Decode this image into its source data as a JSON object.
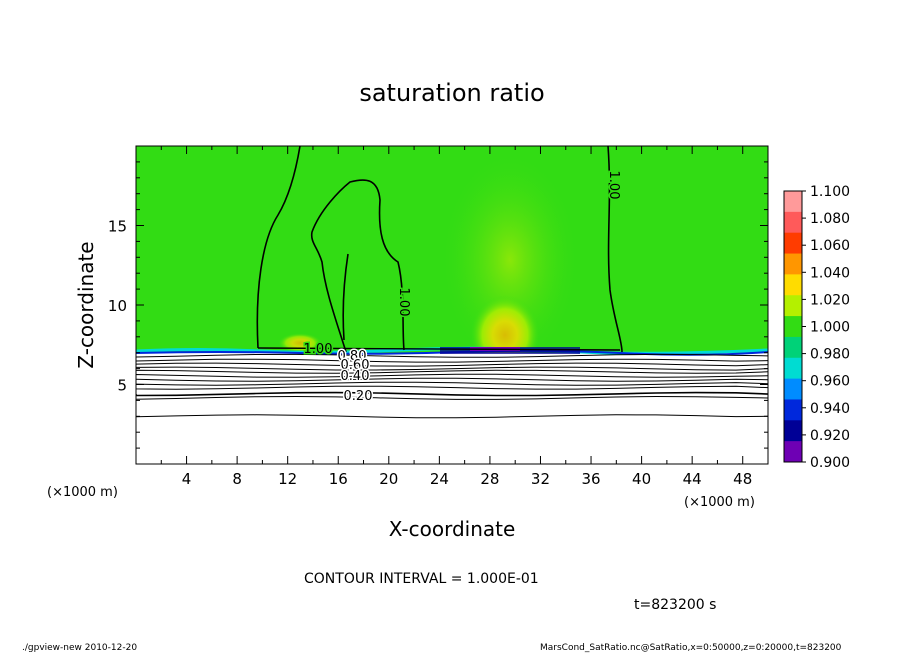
{
  "chart_data": {
    "type": "heatmap",
    "title": "saturation ratio",
    "xlabel": "X-coordinate",
    "ylabel": "Z-coordinate",
    "x_unit": "(×1000 m)",
    "y_unit": "(×1000 m)",
    "xlim": [
      0,
      50
    ],
    "ylim": [
      0,
      20
    ],
    "x_ticks": [
      4,
      8,
      12,
      16,
      20,
      24,
      28,
      32,
      36,
      40,
      44,
      48
    ],
    "y_ticks": [
      5,
      10,
      15
    ],
    "colorbar": {
      "levels": [
        "1.100",
        "1.080",
        "1.060",
        "1.040",
        "1.020",
        "1.000",
        "0.980",
        "0.960",
        "0.940",
        "0.920",
        "0.900"
      ],
      "colors": [
        "#ff9a9a",
        "#ff5a5a",
        "#ff3c00",
        "#ff9600",
        "#ffdc00",
        "#b4f000",
        "#32dc14",
        "#00d278",
        "#00dcd2",
        "#008cff",
        "#0028dc",
        "#000096",
        "#6e00b4"
      ]
    },
    "background_value_color": "#32dc14",
    "lower_region_color": "#ffffff",
    "contour_labels": [
      "1.00",
      "1.00",
      "1.00",
      "0.80",
      "0.60",
      "0.40",
      "0.20"
    ],
    "contour_interval_text": "CONTOUR INTERVAL = 1.000E-01",
    "time_text": "t=823200 s"
  },
  "footer": {
    "left": "./gpview-new  2010-12-20",
    "right": "MarsCond_SatRatio.nc@SatRatio,x=0:50000,z=0:20000,t=823200"
  }
}
